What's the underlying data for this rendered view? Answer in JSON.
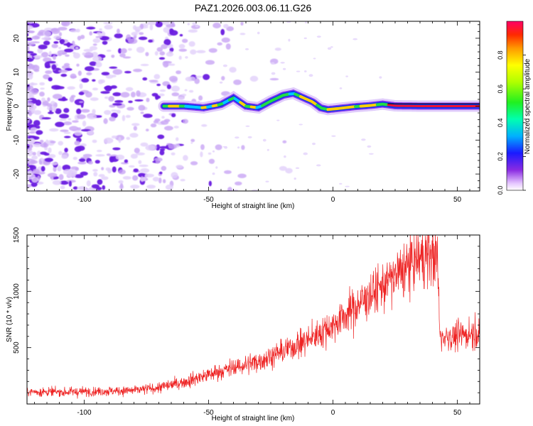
{
  "title": "PAZ1.2026.003.06.11.G26",
  "colors": {
    "snr_line": "#ee2222",
    "ridge_strong": "#ee1133",
    "ridge_mid": "#22dd44",
    "ridge_low": "#1133ee",
    "noise": "#8833ee"
  },
  "chart_data": [
    {
      "type": "heatmap",
      "name": "spectrogram",
      "xlabel": "Height of straight line (km)",
      "ylabel": "Frequency (Hz)",
      "xlim": [
        -123,
        59
      ],
      "ylim": [
        -25,
        25
      ],
      "xticks": [
        -100,
        -50,
        0,
        50
      ],
      "xtick_labels": [
        "-100",
        "-50",
        "0",
        "50"
      ],
      "yticks": [
        -20,
        -10,
        0,
        10,
        20
      ],
      "ytick_labels": [
        "-20",
        "-10",
        "0",
        "10",
        "20"
      ],
      "ridge": {
        "x": [
          -68,
          -60,
          -52,
          -45,
          -40,
          -35,
          -30,
          -25,
          -20,
          -16,
          -12,
          -8,
          -5,
          -2,
          2,
          8,
          15,
          20,
          25,
          35,
          45,
          59
        ],
        "freq": [
          0,
          0,
          -0.5,
          0.5,
          2.5,
          0,
          -0.5,
          1.5,
          3.2,
          3.8,
          2.5,
          1.2,
          -0.5,
          -1,
          -0.7,
          -0.2,
          0.2,
          0.6,
          0.1,
          0,
          0,
          0
        ]
      },
      "colorbar": {
        "label": "Normalized spectral amplitude",
        "range": [
          0,
          1
        ],
        "ticks": [
          0.0,
          0.2,
          0.4,
          0.6,
          0.8
        ],
        "tick_labels": [
          "0.0",
          "0.2",
          "0.4",
          "0.6",
          "0.8"
        ]
      }
    },
    {
      "type": "line",
      "name": "snr",
      "xlabel": "Height of straight line (km)",
      "ylabel": "SNR (10 * v/v)",
      "xlim": [
        -123,
        59
      ],
      "ylim": [
        0,
        1500
      ],
      "xticks": [
        -100,
        -50,
        0,
        50
      ],
      "xtick_labels": [
        "-100",
        "-50",
        "0",
        "50"
      ],
      "yticks": [
        500,
        1000,
        1500
      ],
      "ytick_labels": [
        "500",
        "1000",
        "1500"
      ],
      "series": [
        {
          "name": "SNR",
          "x": [
            -123,
            -110,
            -100,
            -90,
            -80,
            -70,
            -60,
            -50,
            -40,
            -30,
            -20,
            -10,
            0,
            10,
            20,
            30,
            35,
            40,
            42,
            43,
            50,
            59
          ],
          "values": [
            110,
            105,
            110,
            115,
            120,
            145,
            195,
            260,
            320,
            380,
            470,
            570,
            700,
            880,
            1050,
            1220,
            1300,
            1330,
            1290,
            600,
            600,
            650
          ]
        }
      ]
    }
  ]
}
